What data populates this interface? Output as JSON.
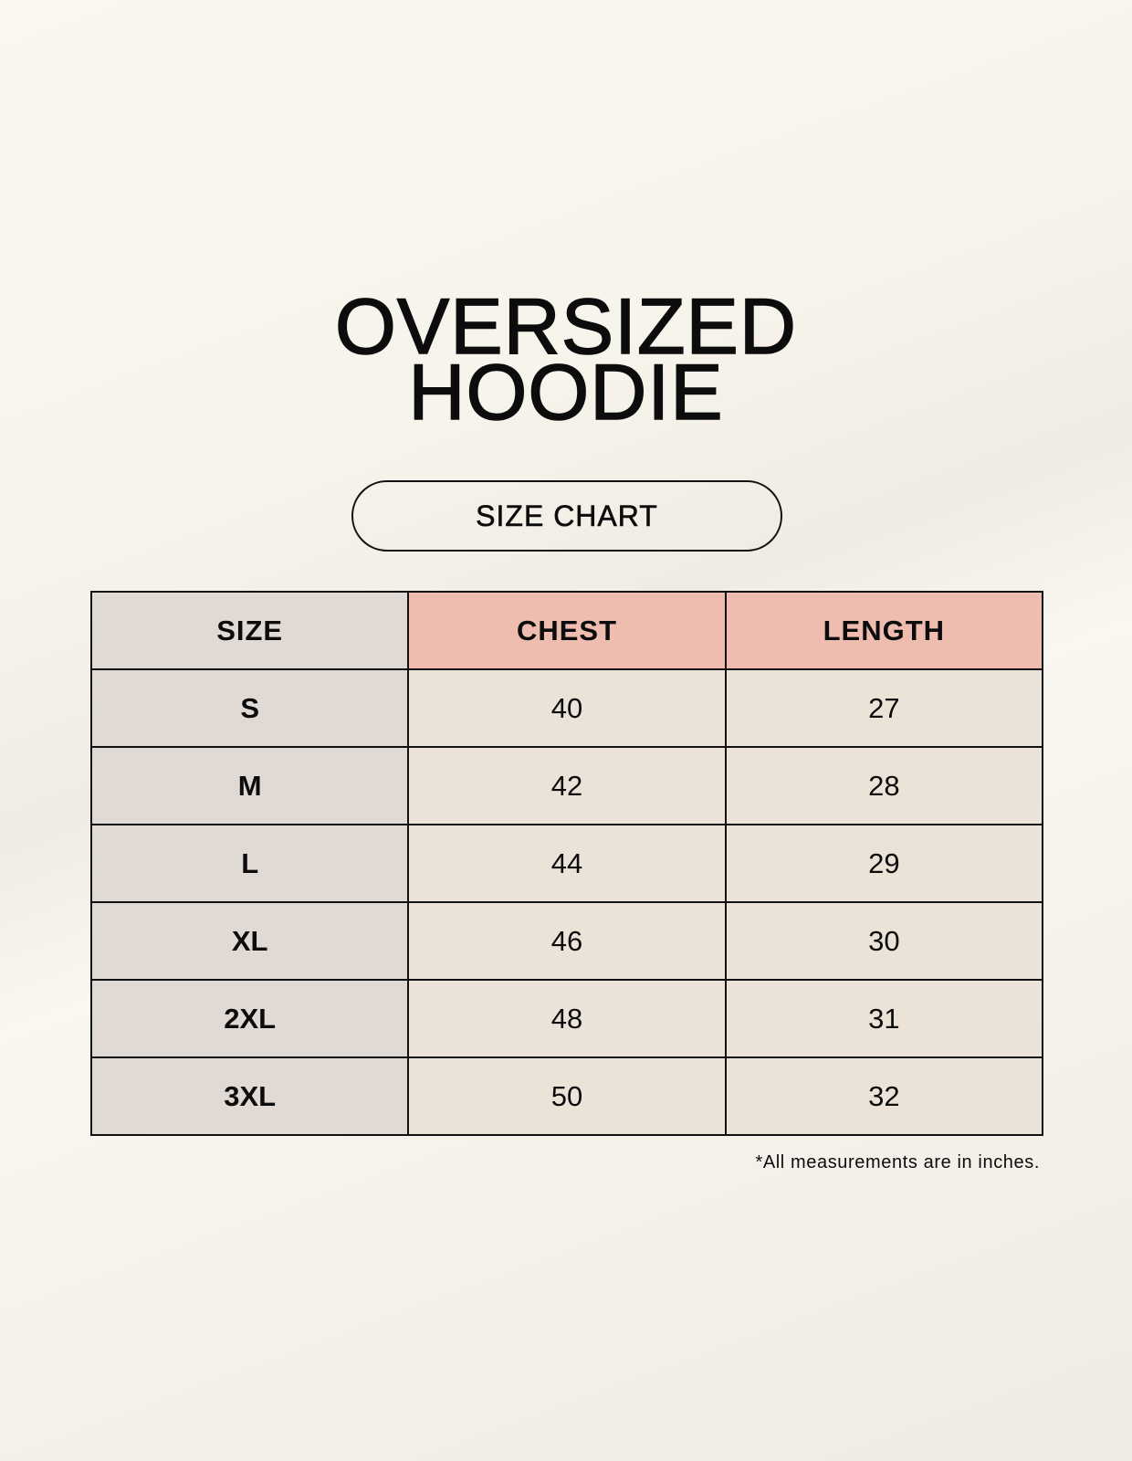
{
  "title": {
    "line1": "OVERSIZED",
    "line2": "HOODIE"
  },
  "subtitle": "SIZE CHART",
  "table": {
    "headers": [
      "SIZE",
      "CHEST",
      "LENGTH"
    ],
    "rows": [
      [
        "S",
        "40",
        "27"
      ],
      [
        "M",
        "42",
        "28"
      ],
      [
        "L",
        "44",
        "29"
      ],
      [
        "XL",
        "46",
        "30"
      ],
      [
        "2XL",
        "48",
        "31"
      ],
      [
        "3XL",
        "50",
        "32"
      ]
    ]
  },
  "footnote": "*All measurements are in inches.",
  "colors": {
    "size_column": "#e1d9d3",
    "measure_header": "#eebdaf",
    "measure_cells": "#ece3d8"
  }
}
